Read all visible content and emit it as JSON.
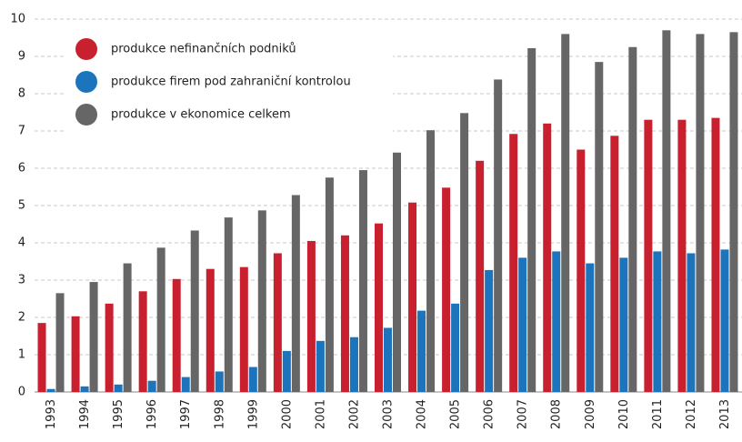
{
  "chart_data": {
    "type": "bar",
    "categories": [
      "1993",
      "1994",
      "1995",
      "1996",
      "1997",
      "1998",
      "1999",
      "2000",
      "2001",
      "2002",
      "2003",
      "2004",
      "2005",
      "2006",
      "2007",
      "2008",
      "2009",
      "2010",
      "2011",
      "2012",
      "2013"
    ],
    "series": [
      {
        "name": "produkce nefinančních podniků",
        "color": "#c8202f",
        "values": [
          1.85,
          2.03,
          2.37,
          2.7,
          3.03,
          3.3,
          3.35,
          3.72,
          4.05,
          4.2,
          4.52,
          5.08,
          5.48,
          6.2,
          6.92,
          7.2,
          6.5,
          6.87,
          7.3,
          7.3,
          7.35
        ]
      },
      {
        "name": "produkce firem pod zahraniční kontrolou",
        "color": "#1c75bc",
        "values": [
          0.08,
          0.15,
          0.2,
          0.3,
          0.4,
          0.55,
          0.67,
          1.1,
          1.37,
          1.47,
          1.72,
          2.18,
          2.37,
          3.27,
          3.6,
          3.77,
          3.45,
          3.6,
          3.77,
          3.72,
          3.82
        ]
      },
      {
        "name": "produkce v ekonomice celkem",
        "color": "#666666",
        "values": [
          2.65,
          2.95,
          3.45,
          3.87,
          4.33,
          4.68,
          4.87,
          5.28,
          5.75,
          5.95,
          6.42,
          7.02,
          7.48,
          8.38,
          9.22,
          9.6,
          8.85,
          9.25,
          9.7,
          9.6,
          9.65
        ]
      }
    ],
    "ylim": [
      0,
      10
    ],
    "yticks": [
      0,
      1,
      2,
      3,
      4,
      5,
      6,
      7,
      8,
      9,
      10
    ],
    "grid": true,
    "legend": "top-left"
  }
}
